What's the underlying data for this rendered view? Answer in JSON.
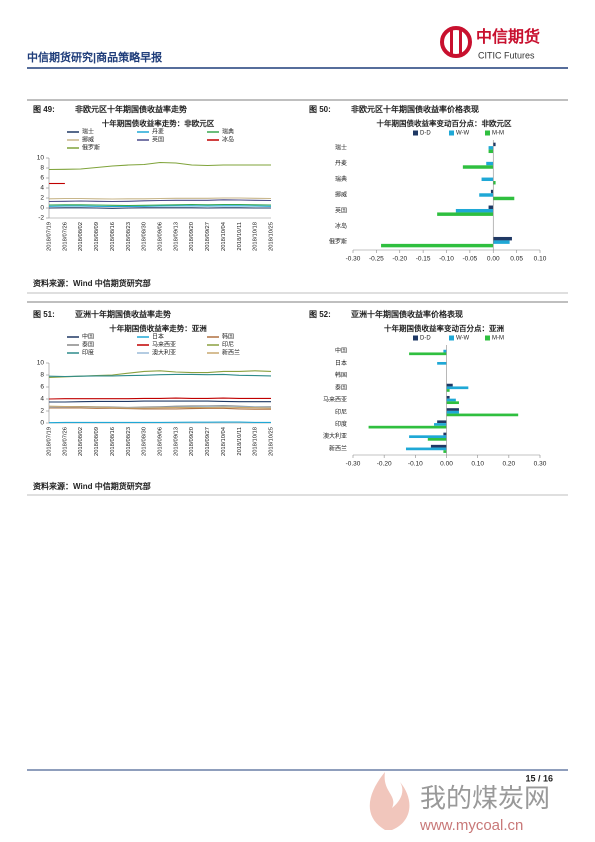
{
  "header": {
    "title": "中信期货研究|商品策略早报"
  },
  "logo": {
    "name_cn": "中信期货",
    "name_en": "CITIC Futures"
  },
  "chart_data": [
    {
      "type": "line",
      "figure": "图 49:",
      "caption": "非欧元区十年期国债收益率走势",
      "title": "十年期国债收益率走势：非欧元区",
      "categories": [
        "2018/07/19",
        "2018/07/26",
        "2018/08/02",
        "2018/08/09",
        "2018/08/16",
        "2018/08/23",
        "2018/08/30",
        "2018/09/06",
        "2018/09/13",
        "2018/09/20",
        "2018/09/27",
        "2018/10/04",
        "2018/10/11",
        "2018/10/18",
        "2018/10/25"
      ],
      "ylim": [
        -2,
        10
      ],
      "yticks": [
        -2,
        0,
        2,
        4,
        6,
        8,
        10
      ],
      "series": [
        {
          "name": "瑞士",
          "color": "#1f3864",
          "values": [
            0.0,
            0.05,
            0.05,
            0.0,
            -0.05,
            0.0,
            0.05,
            0.05,
            0.05,
            0.05,
            0.0,
            0.05,
            0.05,
            0.0,
            0.0
          ]
        },
        {
          "name": "丹麦",
          "color": "#1fa8d6",
          "values": [
            0.35,
            0.4,
            0.4,
            0.35,
            0.3,
            0.3,
            0.35,
            0.4,
            0.45,
            0.45,
            0.4,
            0.45,
            0.45,
            0.4,
            0.35
          ]
        },
        {
          "name": "瑞典",
          "color": "#3aa850",
          "values": [
            0.6,
            0.65,
            0.65,
            0.6,
            0.55,
            0.5,
            0.55,
            0.6,
            0.65,
            0.7,
            0.65,
            0.7,
            0.7,
            0.65,
            0.6
          ]
        },
        {
          "name": "挪威",
          "color": "#c8b68a",
          "values": [
            1.85,
            1.9,
            1.9,
            1.85,
            1.8,
            1.85,
            1.85,
            1.9,
            1.95,
            1.95,
            1.95,
            2.0,
            2.0,
            1.95,
            1.9
          ]
        },
        {
          "name": "英国",
          "color": "#4a4a8a",
          "values": [
            1.3,
            1.35,
            1.4,
            1.35,
            1.3,
            1.35,
            1.45,
            1.5,
            1.55,
            1.55,
            1.55,
            1.65,
            1.6,
            1.55,
            1.5
          ]
        },
        {
          "name": "冰岛",
          "color": "#c00000",
          "values": [
            4.9,
            4.9,
            null,
            null,
            null,
            null,
            null,
            null,
            null,
            null,
            null,
            null,
            null,
            null,
            null
          ]
        },
        {
          "name": "俄罗斯",
          "color": "#7fa33a",
          "values": [
            7.7,
            7.75,
            7.8,
            8.1,
            8.4,
            8.6,
            8.7,
            9.1,
            9.0,
            8.6,
            8.5,
            8.6,
            8.6,
            8.6,
            8.6
          ]
        }
      ]
    },
    {
      "type": "hbar",
      "figure": "图 50:",
      "caption": "非欧元区十年期国债收益率价格表现",
      "title": "十年期国债收益率变动百分点：非欧元区",
      "categories": [
        "瑞士",
        "丹麦",
        "瑞典",
        "挪威",
        "英国",
        "冰岛",
        "俄罗斯"
      ],
      "xlim": [
        -0.3,
        0.1
      ],
      "xticks": [
        {
          "value": -0.3,
          "label": "-0.30"
        },
        {
          "value": -0.25,
          "label": "-0.25"
        },
        {
          "value": -0.2,
          "label": "-0.20"
        },
        {
          "value": -0.15,
          "label": "-0.15"
        },
        {
          "value": -0.1,
          "label": "-0.10"
        },
        {
          "value": -0.05,
          "label": "-0.05"
        },
        {
          "value": 0,
          "label": "0.00"
        },
        {
          "value": 0.05,
          "label": "0.05"
        },
        {
          "value": 0.1,
          "label": "0.10"
        }
      ],
      "series": [
        {
          "name": "D-D",
          "color": "#1f3864",
          "values": [
            0.005,
            0.0,
            0.0,
            -0.005,
            -0.01,
            0.0,
            0.04
          ]
        },
        {
          "name": "W-W",
          "color": "#1fa8d6",
          "values": [
            -0.01,
            -0.015,
            -0.025,
            -0.03,
            -0.08,
            0.0,
            0.035
          ]
        },
        {
          "name": "M-M",
          "color": "#2fbf3f",
          "values": [
            -0.01,
            -0.065,
            0.005,
            0.045,
            -0.12,
            0.0,
            -0.24
          ]
        }
      ]
    },
    {
      "type": "line",
      "figure": "图 51:",
      "caption": "亚洲十年期国债收益率走势",
      "title": "十年期国债收益率走势：亚洲",
      "categories": [
        "2018/07/19",
        "2018/07/26",
        "2018/08/02",
        "2018/08/09",
        "2018/08/16",
        "2018/08/23",
        "2018/08/30",
        "2018/09/06",
        "2018/09/13",
        "2018/09/20",
        "2018/09/27",
        "2018/10/04",
        "2018/10/11",
        "2018/10/18",
        "2018/10/25"
      ],
      "ylim": [
        0,
        10
      ],
      "yticks": [
        0,
        2,
        4,
        6,
        8,
        10
      ],
      "series": [
        {
          "name": "中国",
          "color": "#1f3864",
          "values": [
            3.5,
            3.5,
            3.55,
            3.6,
            3.6,
            3.6,
            3.65,
            3.65,
            3.65,
            3.65,
            3.65,
            3.6,
            3.55,
            3.55,
            3.55
          ]
        },
        {
          "name": "日本",
          "color": "#1fa8d6",
          "values": [
            0.05,
            0.1,
            0.1,
            0.1,
            0.1,
            0.1,
            0.1,
            0.1,
            0.12,
            0.13,
            0.13,
            0.15,
            0.15,
            0.1,
            0.1
          ]
        },
        {
          "name": "韩国",
          "color": "#b07040",
          "values": [
            2.5,
            2.5,
            2.5,
            2.45,
            2.45,
            2.4,
            2.35,
            2.35,
            2.35,
            2.4,
            2.45,
            2.45,
            2.35,
            2.3,
            2.3
          ]
        },
        {
          "name": "泰国",
          "color": "#888888",
          "values": [
            2.7,
            2.75,
            2.75,
            2.7,
            2.65,
            2.6,
            2.65,
            2.7,
            2.8,
            2.85,
            2.85,
            2.9,
            2.8,
            2.7,
            2.7
          ]
        },
        {
          "name": "马来西亚",
          "color": "#c00000",
          "values": [
            4.0,
            4.05,
            4.05,
            4.05,
            4.05,
            4.05,
            4.1,
            4.1,
            4.15,
            4.1,
            4.1,
            4.15,
            4.1,
            4.1,
            4.1
          ]
        },
        {
          "name": "印尼",
          "color": "#8aa040",
          "values": [
            7.6,
            7.7,
            7.8,
            7.9,
            8.0,
            8.3,
            8.6,
            8.7,
            8.5,
            8.4,
            8.4,
            8.6,
            8.6,
            8.7,
            8.6
          ]
        },
        {
          "name": "印度",
          "color": "#2e8b8b",
          "values": [
            7.8,
            7.75,
            7.8,
            7.85,
            7.85,
            7.9,
            7.95,
            8.05,
            8.1,
            8.1,
            8.05,
            8.1,
            7.95,
            7.9,
            7.85
          ]
        },
        {
          "name": "澳大利亚",
          "color": "#9bbbd9",
          "values": [
            2.65,
            2.7,
            2.65,
            2.6,
            2.55,
            2.55,
            2.55,
            2.6,
            2.65,
            2.7,
            2.75,
            2.8,
            2.7,
            2.65,
            2.6
          ]
        },
        {
          "name": "新西兰",
          "color": "#c8a870",
          "values": [
            2.8,
            2.75,
            2.7,
            2.65,
            2.55,
            2.5,
            2.5,
            2.55,
            2.6,
            2.6,
            2.6,
            2.65,
            2.6,
            2.55,
            2.5
          ]
        }
      ]
    },
    {
      "type": "hbar",
      "figure": "图 52:",
      "caption": "亚洲十年期国债收益率价格表现",
      "title": "十年期国债收益率变动百分点：亚洲",
      "categories": [
        "中国",
        "日本",
        "韩国",
        "泰国",
        "马来西亚",
        "印尼",
        "印度",
        "澳大利亚",
        "新西兰"
      ],
      "xlim": [
        -0.3,
        0.3
      ],
      "xticks": [
        {
          "value": -0.3,
          "label": "-0.30"
        },
        {
          "value": -0.2,
          "label": "-0.20"
        },
        {
          "value": -0.1,
          "label": "-0.10"
        },
        {
          "value": 0,
          "label": "0.00"
        },
        {
          "value": 0.1,
          "label": "0.10"
        },
        {
          "value": 0.2,
          "label": "0.20"
        },
        {
          "value": 0.3,
          "label": "0.30"
        }
      ],
      "series": [
        {
          "name": "D-D",
          "color": "#1f3864",
          "values": [
            0.0,
            0.0,
            0.0,
            0.02,
            0.01,
            0.04,
            -0.03,
            -0.01,
            -0.05
          ]
        },
        {
          "name": "W-W",
          "color": "#1fa8d6",
          "values": [
            -0.01,
            -0.03,
            0.0,
            0.07,
            0.03,
            0.04,
            -0.04,
            -0.12,
            -0.13
          ]
        },
        {
          "name": "M-M",
          "color": "#2fbf3f",
          "values": [
            -0.12,
            0.0,
            0.0,
            0.01,
            0.04,
            0.23,
            -0.25,
            -0.06,
            -0.01
          ]
        }
      ]
    }
  ],
  "sources": [
    "资料来源：Wind  中信期货研究部",
    "资料来源：Wind  中信期货研究部"
  ],
  "footer": {
    "page": "15 / 16"
  },
  "watermark": {
    "name": "我的煤炭网",
    "url": "www.mycoal.cn"
  }
}
